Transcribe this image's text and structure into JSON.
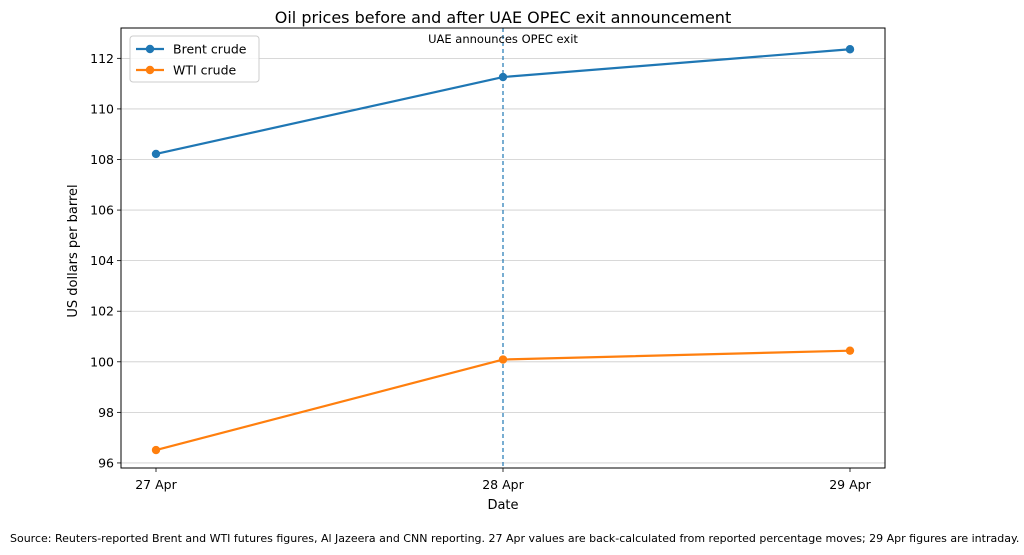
{
  "chart_data": {
    "type": "line",
    "title": "Oil prices before and after UAE OPEC exit announcement",
    "xlabel": "Date",
    "ylabel": "US dollars per barrel",
    "categories": [
      "27 Apr",
      "28 Apr",
      "29 Apr"
    ],
    "yticks": [
      96,
      98,
      100,
      102,
      104,
      106,
      108,
      110,
      112
    ],
    "ylim": [
      95.8,
      113.2
    ],
    "grid": "horizontal",
    "legend_position": "top-left",
    "series": [
      {
        "name": "Brent crude",
        "color": "#1f77b4",
        "values": [
          108.22,
          111.26,
          112.36
        ]
      },
      {
        "name": "WTI crude",
        "color": "#ff7f0e",
        "values": [
          96.51,
          100.09,
          100.44
        ]
      }
    ],
    "annotation": {
      "x": "28 Apr",
      "text": "UAE announces OPEC exit",
      "color": "#1f77b4",
      "style": "dashed"
    }
  },
  "source_note": "Source: Reuters-reported Brent and WTI futures figures, Al Jazeera and CNN reporting. 27 Apr values are back-calculated from reported percentage moves; 29 Apr figures are intraday."
}
